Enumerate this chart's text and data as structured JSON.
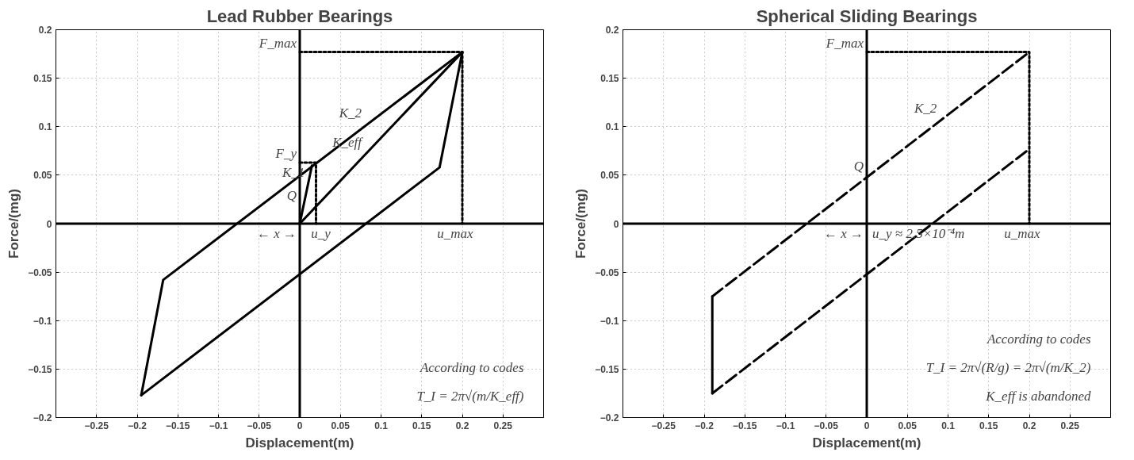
{
  "chart_data": [
    {
      "type": "line",
      "title": "Lead Rubber Bearings",
      "xlabel": "Displacement(m)",
      "ylabel": "Force/(mg)",
      "xlim": [
        -0.3,
        0.3
      ],
      "ylim": [
        -0.2,
        0.2
      ],
      "xticks": [
        -0.25,
        -0.2,
        -0.15,
        -0.1,
        -0.05,
        0,
        0.05,
        0.1,
        0.15,
        0.2,
        0.25
      ],
      "yticks": [
        -0.2,
        -0.15,
        -0.1,
        -0.05,
        0,
        0.05,
        0.1,
        0.15,
        0.2
      ],
      "grid": true,
      "series": [
        {
          "color": "#000000",
          "x": [
            -0.195,
            -0.168,
            0.2
          ],
          "values": [
            -0.177,
            -0.058,
            0.177
          ]
        },
        {
          "color": "#000000",
          "x": [
            -0.195,
            0.172,
            0.2
          ],
          "values": [
            -0.177,
            0.058,
            0.177
          ]
        },
        {
          "color": "#000000",
          "x": [
            0,
            0.015
          ],
          "values": [
            0,
            0.06
          ]
        },
        {
          "color": "#000000",
          "x": [
            0,
            0.2
          ],
          "values": [
            0,
            0.177
          ]
        },
        {
          "color": "#000000",
          "x": [
            0,
            0.02,
            0.02
          ],
          "values": [
            0.063,
            0.063,
            0
          ],
          "line_style": "dotted"
        },
        {
          "color": "#000000",
          "x": [
            0,
            0.2,
            0.2
          ],
          "values": [
            0.177,
            0.177,
            0
          ],
          "line_style": "dotted"
        },
        {
          "color": "#000000",
          "x": [
            0,
            0
          ],
          "values": [
            -0.2,
            0.2
          ]
        },
        {
          "color": "#000000",
          "x": [
            -0.3,
            0.3
          ],
          "values": [
            0,
            0
          ]
        }
      ],
      "annotations": [
        {
          "text": "F_max",
          "x": 0,
          "y": 0.177
        },
        {
          "text": "F_y",
          "x": 0,
          "y": 0.063
        },
        {
          "text": "Q",
          "x": 0,
          "y": 0.02
        },
        {
          "text": "K_1",
          "x": 0.01,
          "y": 0.04
        },
        {
          "text": "K_eff",
          "x": 0.08,
          "y": 0.0708
        },
        {
          "text": "K_2",
          "x": 0.08,
          "y": 0.1016
        },
        {
          "text": "u_y",
          "x": 0.01,
          "y": 0
        },
        {
          "text": "u_max",
          "x": 0.165,
          "y": 0
        },
        {
          "text": "← x →",
          "x": 0,
          "y": 0
        },
        "According to codes",
        "T_I = 2π√(m/K_eff)"
      ]
    },
    {
      "type": "line",
      "title": "Spherical Sliding Bearings",
      "xlabel": "Displacement(m)",
      "ylabel": "Force/(mg)",
      "xlim": [
        -0.3,
        0.3
      ],
      "ylim": [
        -0.2,
        0.2
      ],
      "xticks": [
        -0.25,
        -0.2,
        -0.15,
        -0.1,
        -0.05,
        0,
        0.05,
        0.1,
        0.15,
        0.2,
        0.25
      ],
      "yticks": [
        -0.2,
        -0.15,
        -0.1,
        -0.05,
        0,
        0.05,
        0.1,
        0.15,
        0.2
      ],
      "grid": true,
      "series": [
        {
          "color": "#000000",
          "x": [
            -0.19,
            -0.19
          ],
          "values": [
            -0.175,
            -0.075
          ]
        },
        {
          "color": "#000000",
          "x": [
            -0.19,
            0.2
          ],
          "values": [
            -0.075,
            0.177
          ],
          "line_style": "dashed"
        },
        {
          "color": "#000000",
          "x": [
            -0.19,
            0.2
          ],
          "values": [
            -0.175,
            0.077
          ],
          "line_style": "dashed"
        },
        {
          "color": "#000000",
          "x": [
            0,
            0.2,
            0.2
          ],
          "values": [
            0.177,
            0.177,
            0
          ],
          "line_style": "dotted"
        },
        {
          "color": "#000000",
          "x": [
            0,
            0
          ],
          "values": [
            -0.2,
            0.2
          ]
        },
        {
          "color": "#000000",
          "x": [
            -0.3,
            0.3
          ],
          "values": [
            0,
            0
          ]
        }
      ],
      "annotations": [
        {
          "text": "F_max",
          "x": 0,
          "y": 0.177
        },
        {
          "text": "K_2",
          "x": 0.09,
          "y": 0.106
        },
        {
          "text": "Q",
          "x": 0,
          "y": 0.05
        },
        {
          "text": "u_y ≈ 2.5×10⁻⁴m",
          "x": 0.003,
          "y": 0
        },
        {
          "text": "u_max",
          "x": 0.165,
          "y": 0
        },
        {
          "text": "← x →",
          "x": 0,
          "y": 0
        },
        "According to codes",
        "T_I = 2π√(R/g) = 2π√(m/K_2)",
        "K_eff is abandoned"
      ]
    }
  ]
}
